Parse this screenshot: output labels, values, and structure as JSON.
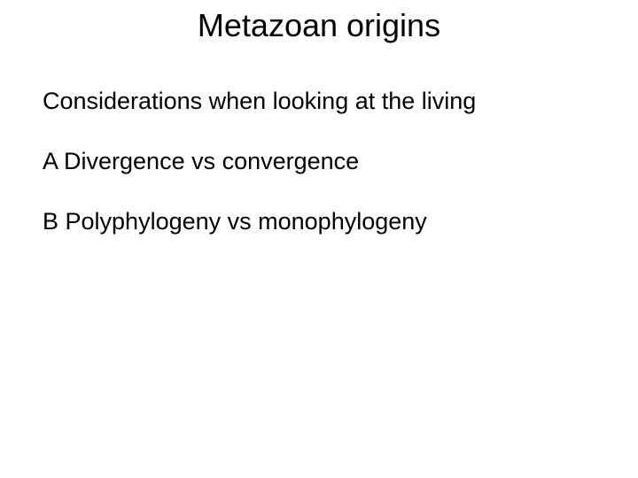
{
  "slide": {
    "title": "Metazoan origins",
    "subtitle": "Considerations when looking at the living",
    "point_a": "A Divergence vs convergence",
    "point_b": "B Polyphylogeny vs monophylogeny",
    "background_color": "#ffffff",
    "text_color": "#000000",
    "title_fontsize": 36,
    "body_fontsize": 27,
    "font_family": "Arial, Helvetica, sans-serif"
  }
}
